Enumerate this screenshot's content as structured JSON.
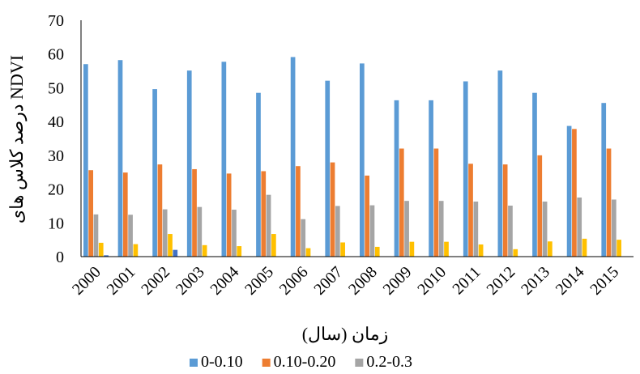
{
  "chart_data": {
    "type": "bar",
    "title": "",
    "xlabel": "زمان (سال)",
    "ylabel": "درصد کلاس های NDVI",
    "ylim": [
      0,
      70
    ],
    "yticks": [
      0,
      10,
      20,
      30,
      40,
      50,
      60,
      70
    ],
    "grid": false,
    "legend_position": "bottom",
    "categories": [
      "2000",
      "2001",
      "2002",
      "2003",
      "2004",
      "2005",
      "2006",
      "2007",
      "2008",
      "2009",
      "2010",
      "2011",
      "2012",
      "2013",
      "2014",
      "2015"
    ],
    "series": [
      {
        "name": "0-0.10",
        "color": "#5B9BD5",
        "values": [
          57.0,
          58.2,
          49.6,
          55.1,
          57.7,
          48.5,
          59.1,
          52.1,
          57.2,
          46.3,
          46.3,
          51.9,
          55.1,
          48.5,
          38.7,
          45.5
        ]
      },
      {
        "name": "0.10-0.20",
        "color": "#ED7D31",
        "values": [
          25.6,
          24.9,
          27.3,
          25.9,
          24.6,
          25.3,
          26.8,
          27.9,
          24.0,
          32.0,
          32.0,
          27.5,
          27.3,
          30.0,
          37.8,
          32.0
        ]
      },
      {
        "name": "0.2-0.3",
        "color": "#A5A5A5",
        "values": [
          12.5,
          12.4,
          14.0,
          14.7,
          13.9,
          18.3,
          11.1,
          15.0,
          15.2,
          16.5,
          16.5,
          16.3,
          15.1,
          16.3,
          17.5,
          16.9
        ]
      },
      {
        "name": "",
        "color": "#FFC000",
        "values": [
          4.1,
          3.7,
          6.7,
          3.4,
          3.1,
          6.7,
          2.5,
          4.2,
          2.9,
          4.4,
          4.4,
          3.6,
          2.2,
          4.5,
          5.3,
          5.0
        ]
      },
      {
        "name": "",
        "color": "#4472C4",
        "values": [
          0.4,
          0.0,
          2.0,
          0.0,
          0.0,
          0.0,
          0.0,
          0.0,
          0.0,
          0.0,
          0.0,
          0.0,
          0.0,
          0.0,
          0.0,
          0.0
        ]
      }
    ]
  }
}
